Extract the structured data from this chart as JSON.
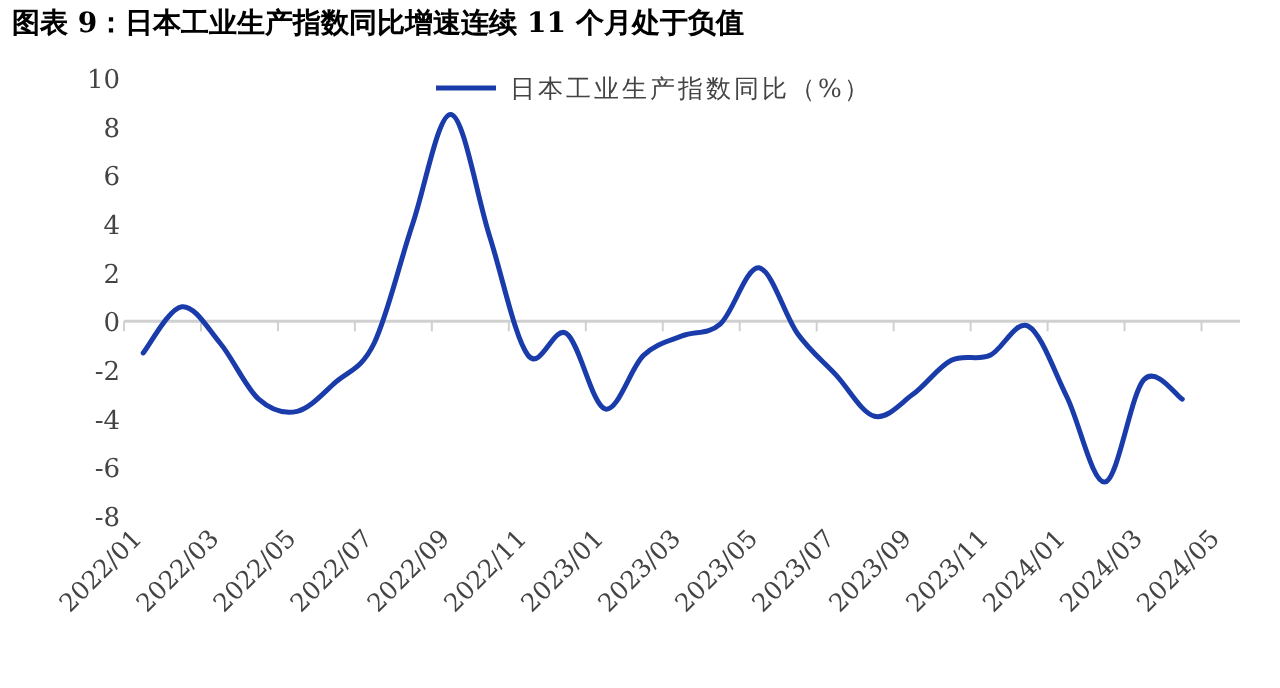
{
  "chart_data": {
    "type": "line",
    "title": "图表 9：日本工业生产指数同比增速连续 11 个月处于负值",
    "categories": [
      "2022/01",
      null,
      "2022/03",
      null,
      "2022/05",
      null,
      "2022/07",
      null,
      "2022/09",
      null,
      "2022/11",
      null,
      "2023/01",
      null,
      "2023/03",
      null,
      "2023/05",
      null,
      "2023/07",
      null,
      "2023/09",
      null,
      "2023/11",
      null,
      "2024/01",
      null,
      "2024/03",
      null,
      "2024/05"
    ],
    "series": [
      {
        "name": "日本工业生产指数同比（%）",
        "color": "#1a3caa",
        "values": [
          -1.3,
          0.6,
          -0.9,
          -3.2,
          -3.7,
          -2.5,
          -0.9,
          4.0,
          8.5,
          3.5,
          -1.4,
          -0.5,
          -3.6,
          -1.4,
          -0.6,
          -0.1,
          2.2,
          -0.5,
          -2.2,
          -3.9,
          -3.0,
          -1.6,
          -1.4,
          -0.2,
          -3.1,
          -6.6,
          -2.4,
          -3.2,
          null
        ]
      }
    ],
    "ylim": [
      -8,
      10
    ],
    "yticks": [
      -8,
      -6,
      -4,
      -2,
      0,
      2,
      4,
      6,
      8,
      10
    ],
    "ref_lines": [
      {
        "axis": "y",
        "value": 0,
        "color": "#d0d0d0"
      }
    ],
    "legend": "top",
    "marker": "none",
    "line_style": "solid"
  }
}
